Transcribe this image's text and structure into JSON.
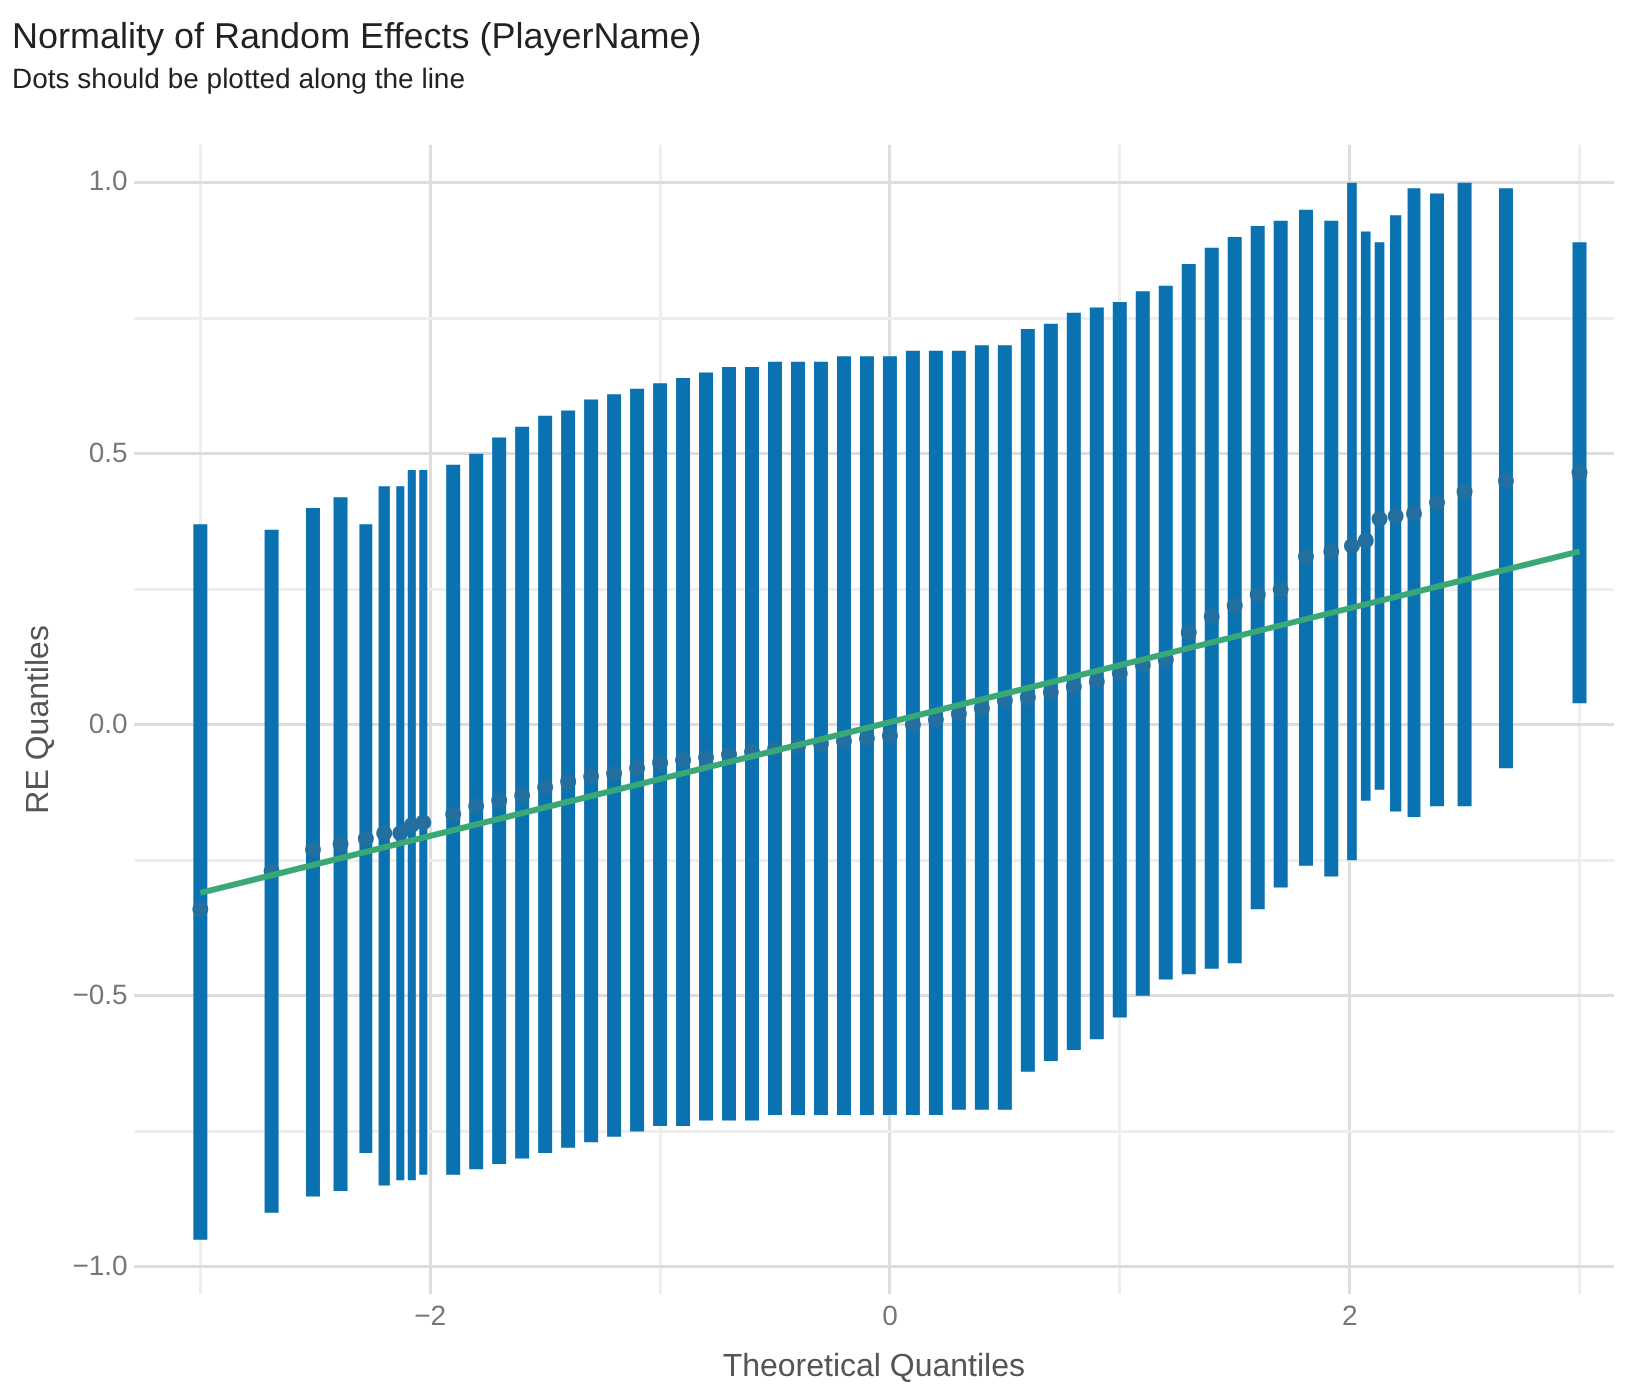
{
  "chart_data": {
    "type": "scatter",
    "title": "Normality of Random Effects (PlayerName)",
    "subtitle": "Dots should be plotted along the line",
    "xlabel": "Theoretical Quantiles",
    "ylabel": "RE Quantiles",
    "grid": true,
    "xlim": [
      -3.29,
      3.15
    ],
    "ylim": [
      -1.05,
      1.07
    ],
    "xticks": [
      {
        "value": -3,
        "label": null
      },
      {
        "value": -2,
        "label": "−2"
      },
      {
        "value": -1,
        "label": null
      },
      {
        "value": 0,
        "label": "0"
      },
      {
        "value": 1,
        "label": null
      },
      {
        "value": 2,
        "label": "2"
      },
      {
        "value": 3,
        "label": null
      }
    ],
    "yticks": [
      {
        "value": -1,
        "label": "−1.0"
      },
      {
        "value": -0.75,
        "label": null
      },
      {
        "value": -0.5,
        "label": "−0.5"
      },
      {
        "value": -0.25,
        "label": null
      },
      {
        "value": 0,
        "label": "0.0"
      },
      {
        "value": 0.25,
        "label": null
      },
      {
        "value": 0.5,
        "label": "0.5"
      },
      {
        "value": 0.75,
        "label": null
      },
      {
        "value": 1,
        "label": "1.0"
      }
    ],
    "series": [
      {
        "color": "#2370a0",
        "marker": "circle",
        "x": [
          -3.0,
          -2.69,
          -2.51,
          -2.39,
          -2.28,
          -2.2,
          -2.13,
          -2.08,
          -2.03,
          -1.9,
          -1.8,
          -1.7,
          -1.6,
          -1.5,
          -1.4,
          -1.3,
          -1.2,
          -1.1,
          -1.0,
          -0.9,
          -0.8,
          -0.7,
          -0.6,
          -0.5,
          -0.4,
          -0.3,
          -0.2,
          -0.1,
          0.0,
          0.1,
          0.2,
          0.3,
          0.4,
          0.5,
          0.6,
          0.7,
          0.8,
          0.9,
          1.0,
          1.1,
          1.2,
          1.3,
          1.4,
          1.5,
          1.6,
          1.7,
          1.81,
          1.92,
          2.01,
          2.07,
          2.13,
          2.2,
          2.28,
          2.38,
          2.5,
          2.68,
          3.0
        ],
        "values": [
          -0.34,
          -0.27,
          -0.23,
          -0.22,
          -0.21,
          -0.2,
          -0.2,
          -0.185,
          -0.18,
          -0.165,
          -0.15,
          -0.14,
          -0.13,
          -0.115,
          -0.105,
          -0.095,
          -0.09,
          -0.08,
          -0.07,
          -0.065,
          -0.06,
          -0.055,
          -0.05,
          -0.045,
          -0.04,
          -0.035,
          -0.03,
          -0.025,
          -0.02,
          0.0,
          0.01,
          0.02,
          0.03,
          0.045,
          0.05,
          0.06,
          0.07,
          0.08,
          0.095,
          0.11,
          0.12,
          0.17,
          0.2,
          0.22,
          0.24,
          0.25,
          0.31,
          0.32,
          0.33,
          0.34,
          0.38,
          0.385,
          0.39,
          0.41,
          0.43,
          0.45,
          0.465
        ],
        "errors": [
          [
            -0.95,
            0.37
          ],
          [
            -0.9,
            0.36
          ],
          [
            -0.87,
            0.4
          ],
          [
            -0.86,
            0.42
          ],
          [
            -0.79,
            0.37
          ],
          [
            -0.85,
            0.44
          ],
          [
            -0.84,
            0.44
          ],
          [
            -0.84,
            0.47
          ],
          [
            -0.83,
            0.47
          ],
          [
            -0.83,
            0.48
          ],
          [
            -0.82,
            0.5
          ],
          [
            -0.81,
            0.53
          ],
          [
            -0.8,
            0.55
          ],
          [
            -0.79,
            0.57
          ],
          [
            -0.78,
            0.58
          ],
          [
            -0.77,
            0.6
          ],
          [
            -0.76,
            0.61
          ],
          [
            -0.75,
            0.62
          ],
          [
            -0.74,
            0.63
          ],
          [
            -0.74,
            0.64
          ],
          [
            -0.73,
            0.65
          ],
          [
            -0.73,
            0.66
          ],
          [
            -0.73,
            0.66
          ],
          [
            -0.72,
            0.67
          ],
          [
            -0.72,
            0.67
          ],
          [
            -0.72,
            0.67
          ],
          [
            -0.72,
            0.68
          ],
          [
            -0.72,
            0.68
          ],
          [
            -0.72,
            0.68
          ],
          [
            -0.72,
            0.69
          ],
          [
            -0.72,
            0.69
          ],
          [
            -0.71,
            0.69
          ],
          [
            -0.71,
            0.7
          ],
          [
            -0.71,
            0.7
          ],
          [
            -0.64,
            0.73
          ],
          [
            -0.62,
            0.74
          ],
          [
            -0.6,
            0.76
          ],
          [
            -0.58,
            0.77
          ],
          [
            -0.54,
            0.78
          ],
          [
            -0.5,
            0.8
          ],
          [
            -0.47,
            0.81
          ],
          [
            -0.46,
            0.85
          ],
          [
            -0.45,
            0.88
          ],
          [
            -0.44,
            0.9
          ],
          [
            -0.34,
            0.92
          ],
          [
            -0.3,
            0.93
          ],
          [
            -0.26,
            0.95
          ],
          [
            -0.28,
            0.93
          ],
          [
            -0.25,
            1.0
          ],
          [
            -0.14,
            0.91
          ],
          [
            -0.12,
            0.89
          ],
          [
            -0.16,
            0.94
          ],
          [
            -0.17,
            0.99
          ],
          [
            -0.15,
            0.98
          ],
          [
            -0.15,
            1.0
          ],
          [
            -0.08,
            0.99
          ],
          [
            0.04,
            0.89
          ]
        ]
      },
      {
        "type": "line",
        "color": "#3aa876",
        "x": [
          -3.0,
          3.0
        ],
        "values": [
          -0.31,
          0.32
        ]
      }
    ]
  }
}
